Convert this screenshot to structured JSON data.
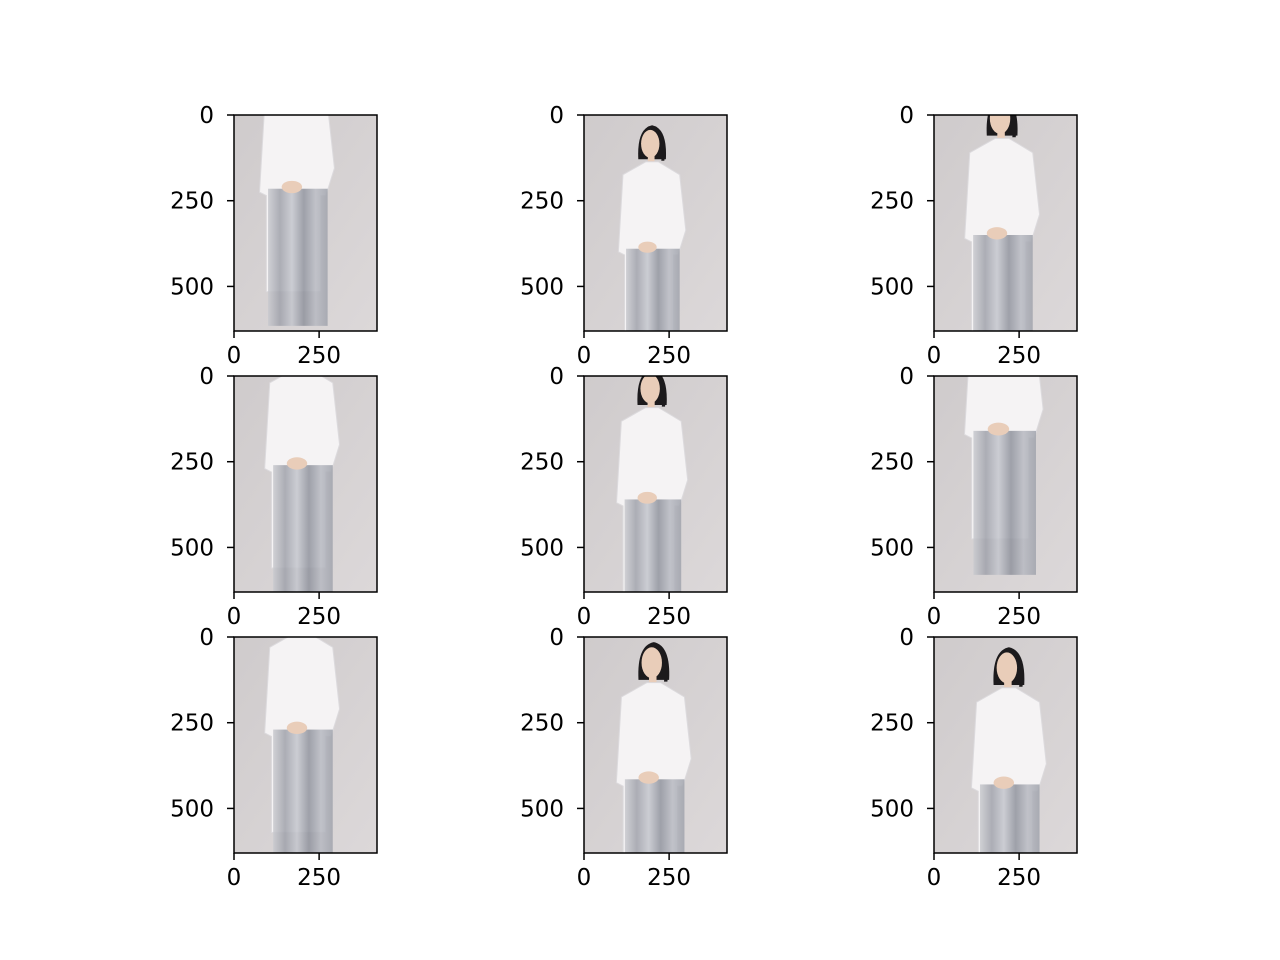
{
  "figure": {
    "background": "#ffffff",
    "grid": false,
    "legend": "none"
  },
  "chart_data": [
    {
      "type": "image",
      "subplot": "r1c1",
      "xlim": [
        0,
        420
      ],
      "ylim": [
        630,
        0
      ],
      "xticks": [
        0,
        250
      ],
      "yticks": [
        0,
        250,
        500
      ],
      "xtick_labels": [
        "0",
        "250"
      ],
      "ytick_labels": [
        "0",
        "250",
        "500"
      ],
      "image": {
        "shift_y": -185,
        "scale": 1.0,
        "shift_x": -15
      }
    },
    {
      "type": "image",
      "subplot": "r1c2",
      "xlim": [
        0,
        420
      ],
      "ylim": [
        630,
        0
      ],
      "xticks": [
        0,
        250
      ],
      "yticks": [
        0,
        250,
        500
      ],
      "xtick_labels": [
        "0",
        "250"
      ],
      "ytick_labels": [
        "0",
        "250",
        "500"
      ],
      "image": {
        "shift_y": 30,
        "scale": 0.9,
        "shift_x": 0
      }
    },
    {
      "type": "image",
      "subplot": "r1c3",
      "xlim": [
        0,
        420
      ],
      "ylim": [
        630,
        0
      ],
      "xticks": [
        0,
        250
      ],
      "yticks": [
        0,
        250,
        500
      ],
      "xtick_labels": [
        "0",
        "250"
      ],
      "ytick_labels": [
        "0",
        "250",
        "500"
      ],
      "image": {
        "shift_y": -50,
        "scale": 1.0,
        "shift_x": 0
      }
    },
    {
      "type": "image",
      "subplot": "r2c1",
      "xlim": [
        0,
        420
      ],
      "ylim": [
        630,
        0
      ],
      "xticks": [
        0,
        250
      ],
      "yticks": [
        0,
        250,
        500
      ],
      "xtick_labels": [
        "0",
        "250"
      ],
      "ytick_labels": [
        "0",
        "250",
        "500"
      ],
      "image": {
        "shift_y": -140,
        "scale": 1.0,
        "shift_x": 0
      }
    },
    {
      "type": "image",
      "subplot": "r2c2",
      "xlim": [
        0,
        420
      ],
      "ylim": [
        630,
        0
      ],
      "xticks": [
        0,
        250
      ],
      "yticks": [
        0,
        250,
        500
      ],
      "xtick_labels": [
        "0",
        "250"
      ],
      "ytick_labels": [
        "0",
        "250",
        "500"
      ],
      "image": {
        "shift_y": -20,
        "scale": 0.95,
        "shift_x": 0
      }
    },
    {
      "type": "image",
      "subplot": "r2c3",
      "xlim": [
        0,
        420
      ],
      "ylim": [
        630,
        0
      ],
      "xticks": [
        0,
        250
      ],
      "yticks": [
        0,
        250,
        500
      ],
      "xtick_labels": [
        "0",
        "250"
      ],
      "ytick_labels": [
        "0",
        "250",
        "500"
      ],
      "image": {
        "shift_y": -260,
        "scale": 1.05,
        "shift_x": 5
      }
    },
    {
      "type": "image",
      "subplot": "r3c1",
      "xlim": [
        0,
        420
      ],
      "ylim": [
        630,
        0
      ],
      "xticks": [
        0,
        250
      ],
      "yticks": [
        0,
        250,
        500
      ],
      "xtick_labels": [
        "0",
        "250"
      ],
      "ytick_labels": [
        "0",
        "250",
        "500"
      ],
      "image": {
        "shift_y": -130,
        "scale": 1.0,
        "shift_x": 0
      }
    },
    {
      "type": "image",
      "subplot": "r3c2",
      "xlim": [
        0,
        420
      ],
      "ylim": [
        630,
        0
      ],
      "xticks": [
        0,
        250
      ],
      "yticks": [
        0,
        250,
        500
      ],
      "xtick_labels": [
        "0",
        "250"
      ],
      "ytick_labels": [
        "0",
        "250",
        "500"
      ],
      "image": {
        "shift_y": 15,
        "scale": 1.0,
        "shift_x": 5
      }
    },
    {
      "type": "image",
      "subplot": "r3c3",
      "xlim": [
        0,
        420
      ],
      "ylim": [
        630,
        0
      ],
      "xticks": [
        0,
        250
      ],
      "yticks": [
        0,
        250,
        500
      ],
      "xtick_labels": [
        "0",
        "250"
      ],
      "ytick_labels": [
        "0",
        "250",
        "500"
      ],
      "image": {
        "shift_y": 30,
        "scale": 1.0,
        "shift_x": 20
      }
    }
  ],
  "colors": {
    "photo_background": "#cfcbcc",
    "dress": "#f5f3f4",
    "hair": "#1c1a1c",
    "skin": "#e9cdb9",
    "stretched_pixels": "#a7a9b1"
  }
}
